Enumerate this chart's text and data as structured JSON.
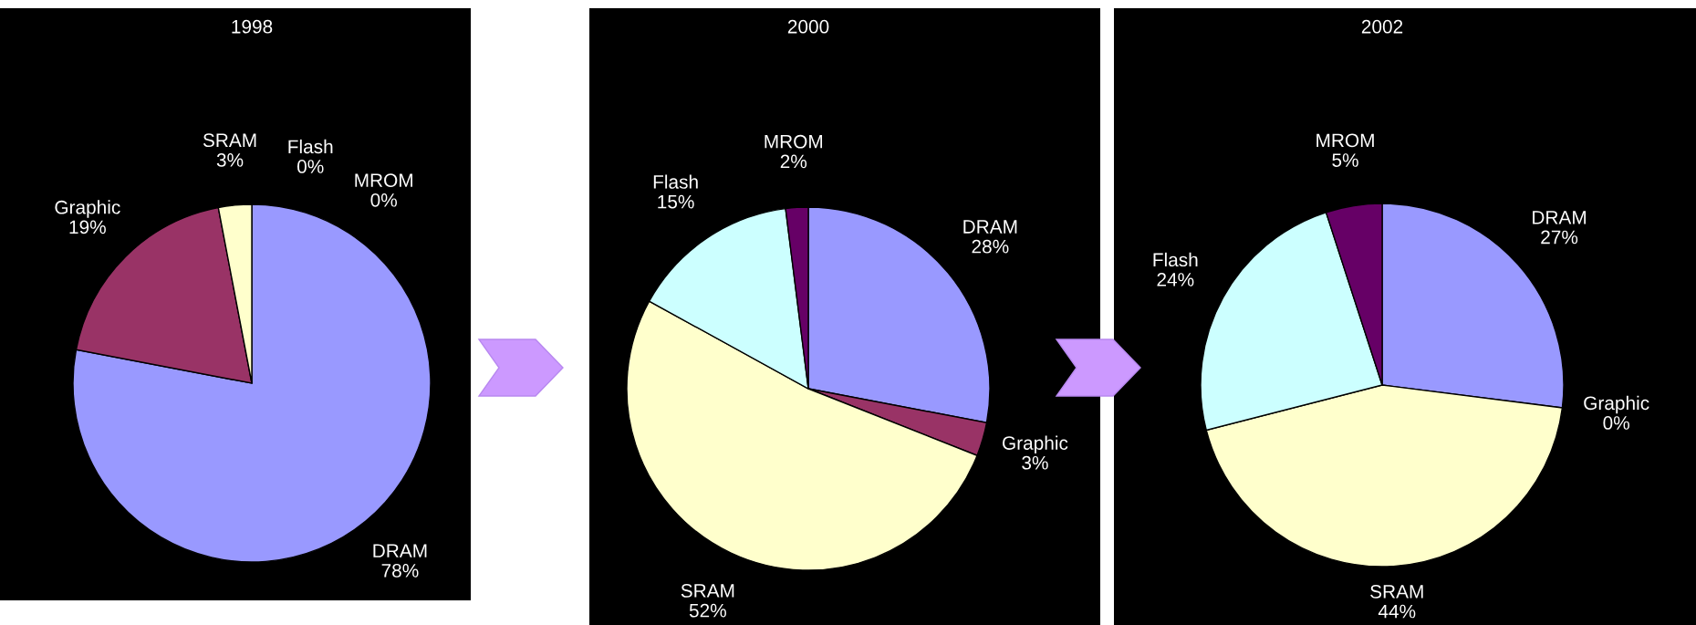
{
  "chart_data": [
    {
      "type": "pie",
      "title": "1998",
      "categories": [
        "DRAM",
        "Graphic",
        "SRAM",
        "Flash",
        "MROM"
      ],
      "values": [
        78,
        19,
        3,
        0,
        0
      ],
      "colors": [
        "#9999ff",
        "#993366",
        "#ffffcc",
        "#ccffff",
        "#660066"
      ],
      "value_labels": [
        "78%",
        "19%",
        "3%",
        "0%",
        "0%"
      ]
    },
    {
      "type": "pie",
      "title": "2000",
      "categories": [
        "DRAM",
        "Graphic",
        "SRAM",
        "Flash",
        "MROM"
      ],
      "values": [
        28,
        3,
        52,
        15,
        2
      ],
      "colors": [
        "#9999ff",
        "#993366",
        "#ffffcc",
        "#ccffff",
        "#660066"
      ],
      "value_labels": [
        "28%",
        "3%",
        "52%",
        "15%",
        "2%"
      ]
    },
    {
      "type": "pie",
      "title": "2002",
      "categories": [
        "DRAM",
        "Graphic",
        "SRAM",
        "Flash",
        "MROM"
      ],
      "values": [
        27,
        0,
        44,
        24,
        5
      ],
      "colors": [
        "#9999ff",
        "#993366",
        "#ffffcc",
        "#ccffff",
        "#660066"
      ],
      "value_labels": [
        "27%",
        "0%",
        "44%",
        "24%",
        "5%"
      ]
    }
  ]
}
